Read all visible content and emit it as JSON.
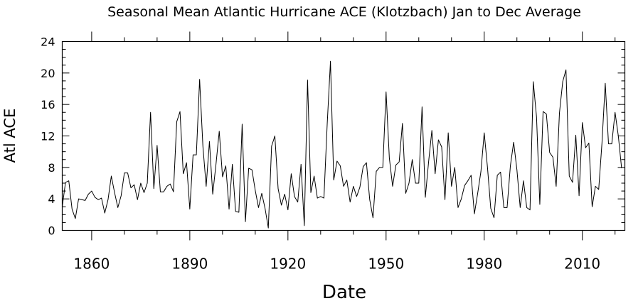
{
  "chart_data": {
    "type": "line",
    "title": "Seasonal Mean Atlantic Hurricane ACE (Klotzbach) Jan to Dec Average",
    "xlabel": "Date",
    "ylabel": "Atl ACE",
    "xlim": [
      1851,
      2023
    ],
    "ylim": [
      0,
      24
    ],
    "xticks": [
      "1860",
      "1890",
      "1920",
      "1950",
      "1980",
      "2010"
    ],
    "yticks": [
      "0",
      "4",
      "8",
      "12",
      "16",
      "20",
      "24"
    ],
    "x_start": 1851,
    "values": [
      3.0,
      6.1,
      6.3,
      2.7,
      1.5,
      4.0,
      3.9,
      3.8,
      4.6,
      5.0,
      4.2,
      3.9,
      4.1,
      2.2,
      3.9,
      6.9,
      4.8,
      2.9,
      4.4,
      7.3,
      7.3,
      5.4,
      5.8,
      3.9,
      6.0,
      4.8,
      6.0,
      15.0,
      5.3,
      10.8,
      4.9,
      4.9,
      5.6,
      5.9,
      4.9,
      13.8,
      15.1,
      7.2,
      8.6,
      2.7,
      9.6,
      9.6,
      19.2,
      10.7,
      5.6,
      11.3,
      4.6,
      8.4,
      12.6,
      6.8,
      8.2,
      2.7,
      8.4,
      2.4,
      2.3,
      13.5,
      1.1,
      7.9,
      7.7,
      5.1,
      2.9,
      4.7,
      2.8,
      0.3,
      10.7,
      12.0,
      5.3,
      3.2,
      4.6,
      2.6,
      7.2,
      4.3,
      3.6,
      8.4,
      0.6,
      19.1,
      4.8,
      6.9,
      4.1,
      4.3,
      4.1,
      13.5,
      21.5,
      6.4,
      8.8,
      8.2,
      5.6,
      6.4,
      3.6,
      5.6,
      4.3,
      5.5,
      8.1,
      8.6,
      3.9,
      1.6,
      7.5,
      8.0,
      8.0,
      17.6,
      9.2,
      5.6,
      8.3,
      8.7,
      13.6,
      4.7,
      6.0,
      9.0,
      6.0,
      6.0,
      15.7,
      4.2,
      8.7,
      12.7,
      7.2,
      11.5,
      10.6,
      3.9,
      12.4,
      5.6,
      8.0,
      2.9,
      4.0,
      5.7,
      6.3,
      7.0,
      2.1,
      4.7,
      7.5,
      12.4,
      8.0,
      2.8,
      1.6,
      7.0,
      7.4,
      2.9,
      2.9,
      8.2,
      11.2,
      7.7,
      2.9,
      6.3,
      2.9,
      2.6,
      18.9,
      14.4,
      3.3,
      15.1,
      14.8,
      9.9,
      9.3,
      5.6,
      14.9,
      18.9,
      20.4,
      6.9,
      6.1,
      12.1,
      4.4,
      13.7,
      10.5,
      11.1,
      3.0,
      5.6,
      5.2,
      11.1,
      18.7,
      11.0,
      11.0,
      15.0,
      12.0,
      7.9
    ]
  }
}
